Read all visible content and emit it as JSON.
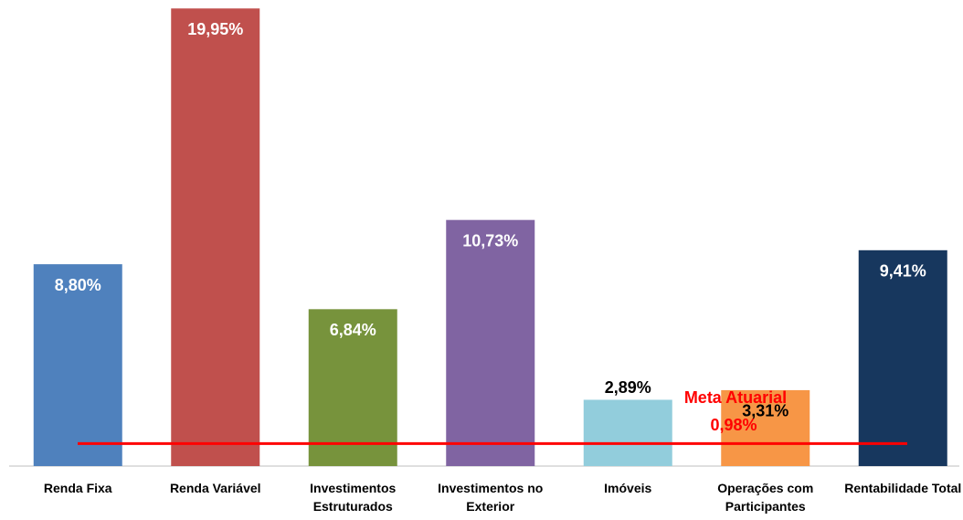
{
  "chart_data": {
    "type": "bar",
    "categories": [
      "Renda Fixa",
      "Renda Variável",
      "Investimentos Estruturados",
      "Investimentos no Exterior",
      "Imóveis",
      "Operações com Participantes",
      "Rentabilidade Total"
    ],
    "values": [
      8.8,
      19.95,
      6.84,
      10.73,
      2.89,
      3.31,
      9.41
    ],
    "value_labels": [
      "8,80%",
      "19,95%",
      "6,84%",
      "10,73%",
      "2,89%",
      "3,31%",
      "9,41%"
    ],
    "colors": [
      "#4f81bd",
      "#c0504d",
      "#77933c",
      "#8064a2",
      "#92cddc",
      "#f79646",
      "#17375e"
    ],
    "ylim": [
      0,
      20
    ],
    "reference_line": {
      "label": "Meta Atuarial",
      "value": 0.98,
      "value_label": "0,98%",
      "color": "#ff0000"
    }
  }
}
